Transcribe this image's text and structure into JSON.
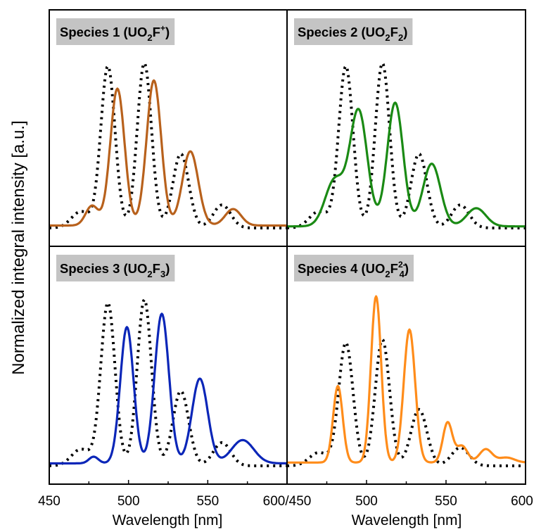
{
  "chart_data": {
    "type": "line",
    "ylabel": "Normalized integral intensity [a.u.]",
    "xlabel": "Wavelength [nm]",
    "x_tick_labels_left": [
      "450",
      "500",
      "550",
      "600/450"
    ],
    "x_tick_labels_right": [
      "500",
      "550",
      "600"
    ],
    "xlim": [
      450,
      600
    ],
    "ylim": [
      0,
      1.05
    ],
    "grid": false,
    "legend": "none",
    "reference_line_style": "dotted black",
    "panels": [
      {
        "title": {
          "prefix": "Species 1 (UO",
          "sub1": "2",
          "mid": "F",
          "sub2": "",
          "sup": "+",
          "suffix": ")"
        },
        "color": "#b8611c",
        "reference_peaks": [
          [
            487,
            0.98,
            4.5
          ],
          [
            510,
            1.0,
            4.5
          ],
          [
            533,
            0.45,
            5
          ],
          [
            559,
            0.14,
            5.5
          ],
          [
            470,
            0.1,
            6
          ]
        ],
        "series_peaks": [
          [
            493,
            0.83,
            4.5
          ],
          [
            516,
            0.88,
            4.6
          ],
          [
            539,
            0.45,
            5
          ],
          [
            566,
            0.1,
            5
          ],
          [
            477,
            0.12,
            4
          ]
        ],
        "baseline": 0.015
      },
      {
        "title": {
          "prefix": "Species 2 (UO",
          "sub1": "2",
          "mid": "F",
          "sub2": "2",
          "sup": "",
          "suffix": ")"
        },
        "color": "#1a8a14",
        "reference_peaks": [
          [
            487,
            0.98,
            4.5
          ],
          [
            510,
            1.0,
            4.5
          ],
          [
            533,
            0.45,
            5
          ],
          [
            559,
            0.14,
            5.5
          ],
          [
            470,
            0.1,
            6
          ]
        ],
        "series_peaks": [
          [
            495,
            0.7,
            5.5
          ],
          [
            518,
            0.75,
            5
          ],
          [
            541,
            0.38,
            5.5
          ],
          [
            569,
            0.11,
            6
          ],
          [
            480,
            0.28,
            6
          ]
        ],
        "baseline": 0.01
      },
      {
        "title": {
          "prefix": "Species 3 (UO",
          "sub1": "2",
          "mid": "F",
          "sub2": "3",
          "sup": "",
          "suffix": ")"
        },
        "color": "#0b26b8",
        "reference_peaks": [
          [
            487,
            0.98,
            4.5
          ],
          [
            510,
            1.0,
            4.5
          ],
          [
            533,
            0.45,
            5
          ],
          [
            559,
            0.14,
            5.5
          ],
          [
            470,
            0.1,
            6
          ]
        ],
        "series_peaks": [
          [
            499,
            0.82,
            4.2
          ],
          [
            521,
            0.9,
            4.5
          ],
          [
            545,
            0.51,
            5
          ],
          [
            572,
            0.14,
            7
          ],
          [
            478,
            0.04,
            3
          ]
        ],
        "baseline": 0.015
      },
      {
        "title": {
          "prefix": "Species 4 (UO",
          "sub1": "2",
          "mid": "F",
          "sub2": "4",
          "sup": "2-",
          "suffix": ")"
        },
        "color": "#ff8c1a",
        "reference_peaks": [
          [
            487,
            0.74,
            4.5
          ],
          [
            510,
            0.76,
            4.5
          ],
          [
            533,
            0.34,
            5
          ],
          [
            559,
            0.11,
            5.5
          ],
          [
            470,
            0.08,
            6
          ]
        ],
        "series_peaks": [
          [
            482,
            0.46,
            3.0
          ],
          [
            506,
            1.0,
            3.2
          ],
          [
            527,
            0.8,
            3.6
          ],
          [
            551,
            0.24,
            3
          ],
          [
            560,
            0.1,
            3.5
          ],
          [
            575,
            0.08,
            4
          ],
          [
            588,
            0.03,
            5
          ]
        ],
        "baseline": 0.02
      }
    ]
  }
}
